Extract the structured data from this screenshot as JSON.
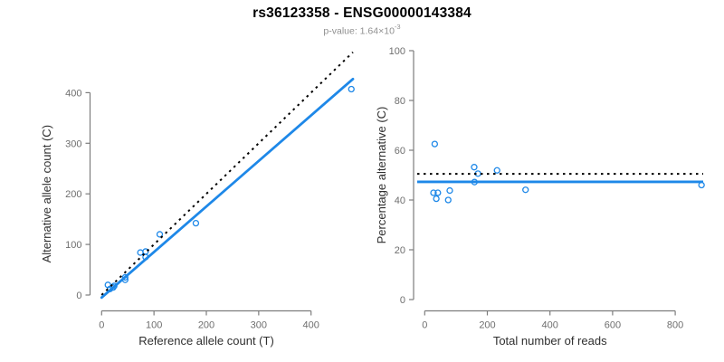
{
  "header": {
    "title": "rs36123358 - ENSG00000143384",
    "subtitle_base": "p-value: 1.64×10",
    "subtitle_exponent": "-3"
  },
  "colors": {
    "point_and_fit_blue": "#1E88E8",
    "reference_line_black": "#000000",
    "axis_line_gray": "#7d7d7d",
    "tick_label_gray": "#6e6e6e",
    "axis_title_dark": "#2f2f2f",
    "subtitle_gray": "#8f8f8f"
  },
  "chart_data": [
    {
      "type": "scatter",
      "xlabel": "Reference allele count (T)",
      "ylabel": "Alternative allele count (C)",
      "x_ticks": [
        0,
        100,
        200,
        300,
        400
      ],
      "y_ticks": [
        0,
        100,
        200,
        300,
        400
      ],
      "xlim": [
        0,
        480
      ],
      "ylim": [
        0,
        485
      ],
      "grid": false,
      "points": [
        [
          12,
          20
        ],
        [
          16,
          12
        ],
        [
          22,
          15
        ],
        [
          24,
          18
        ],
        [
          45,
          30
        ],
        [
          45,
          35
        ],
        [
          74,
          84
        ],
        [
          84,
          75
        ],
        [
          84,
          86
        ],
        [
          111,
          120
        ],
        [
          180,
          142
        ],
        [
          477,
          407
        ]
      ],
      "fit_line": {
        "slope": 0.9,
        "intercept": -5,
        "style": "solid",
        "color": "blue"
      },
      "identity_line": {
        "slope": 1,
        "intercept": 0,
        "style": "dotted",
        "color": "black"
      }
    },
    {
      "type": "scatter",
      "xlabel": "Total number of reads",
      "ylabel": "Percentage alternative (C)",
      "x_ticks": [
        0,
        200,
        400,
        600,
        800
      ],
      "y_ticks": [
        0,
        20,
        40,
        60,
        80,
        100
      ],
      "xlim": [
        0,
        890
      ],
      "ylim": [
        0,
        100
      ],
      "grid": false,
      "points": [
        [
          32,
          62.5
        ],
        [
          28,
          42.9
        ],
        [
          37,
          40.5
        ],
        [
          42,
          42.9
        ],
        [
          75,
          40.0
        ],
        [
          80,
          43.8
        ],
        [
          158,
          53.2
        ],
        [
          159,
          47.2
        ],
        [
          170,
          50.6
        ],
        [
          231,
          51.9
        ],
        [
          322,
          44.1
        ],
        [
          884,
          46.0
        ]
      ],
      "mean_line": {
        "y": 47.3,
        "style": "solid",
        "color": "blue"
      },
      "expected_line": {
        "y": 50.5,
        "style": "dotted",
        "color": "black"
      }
    }
  ]
}
